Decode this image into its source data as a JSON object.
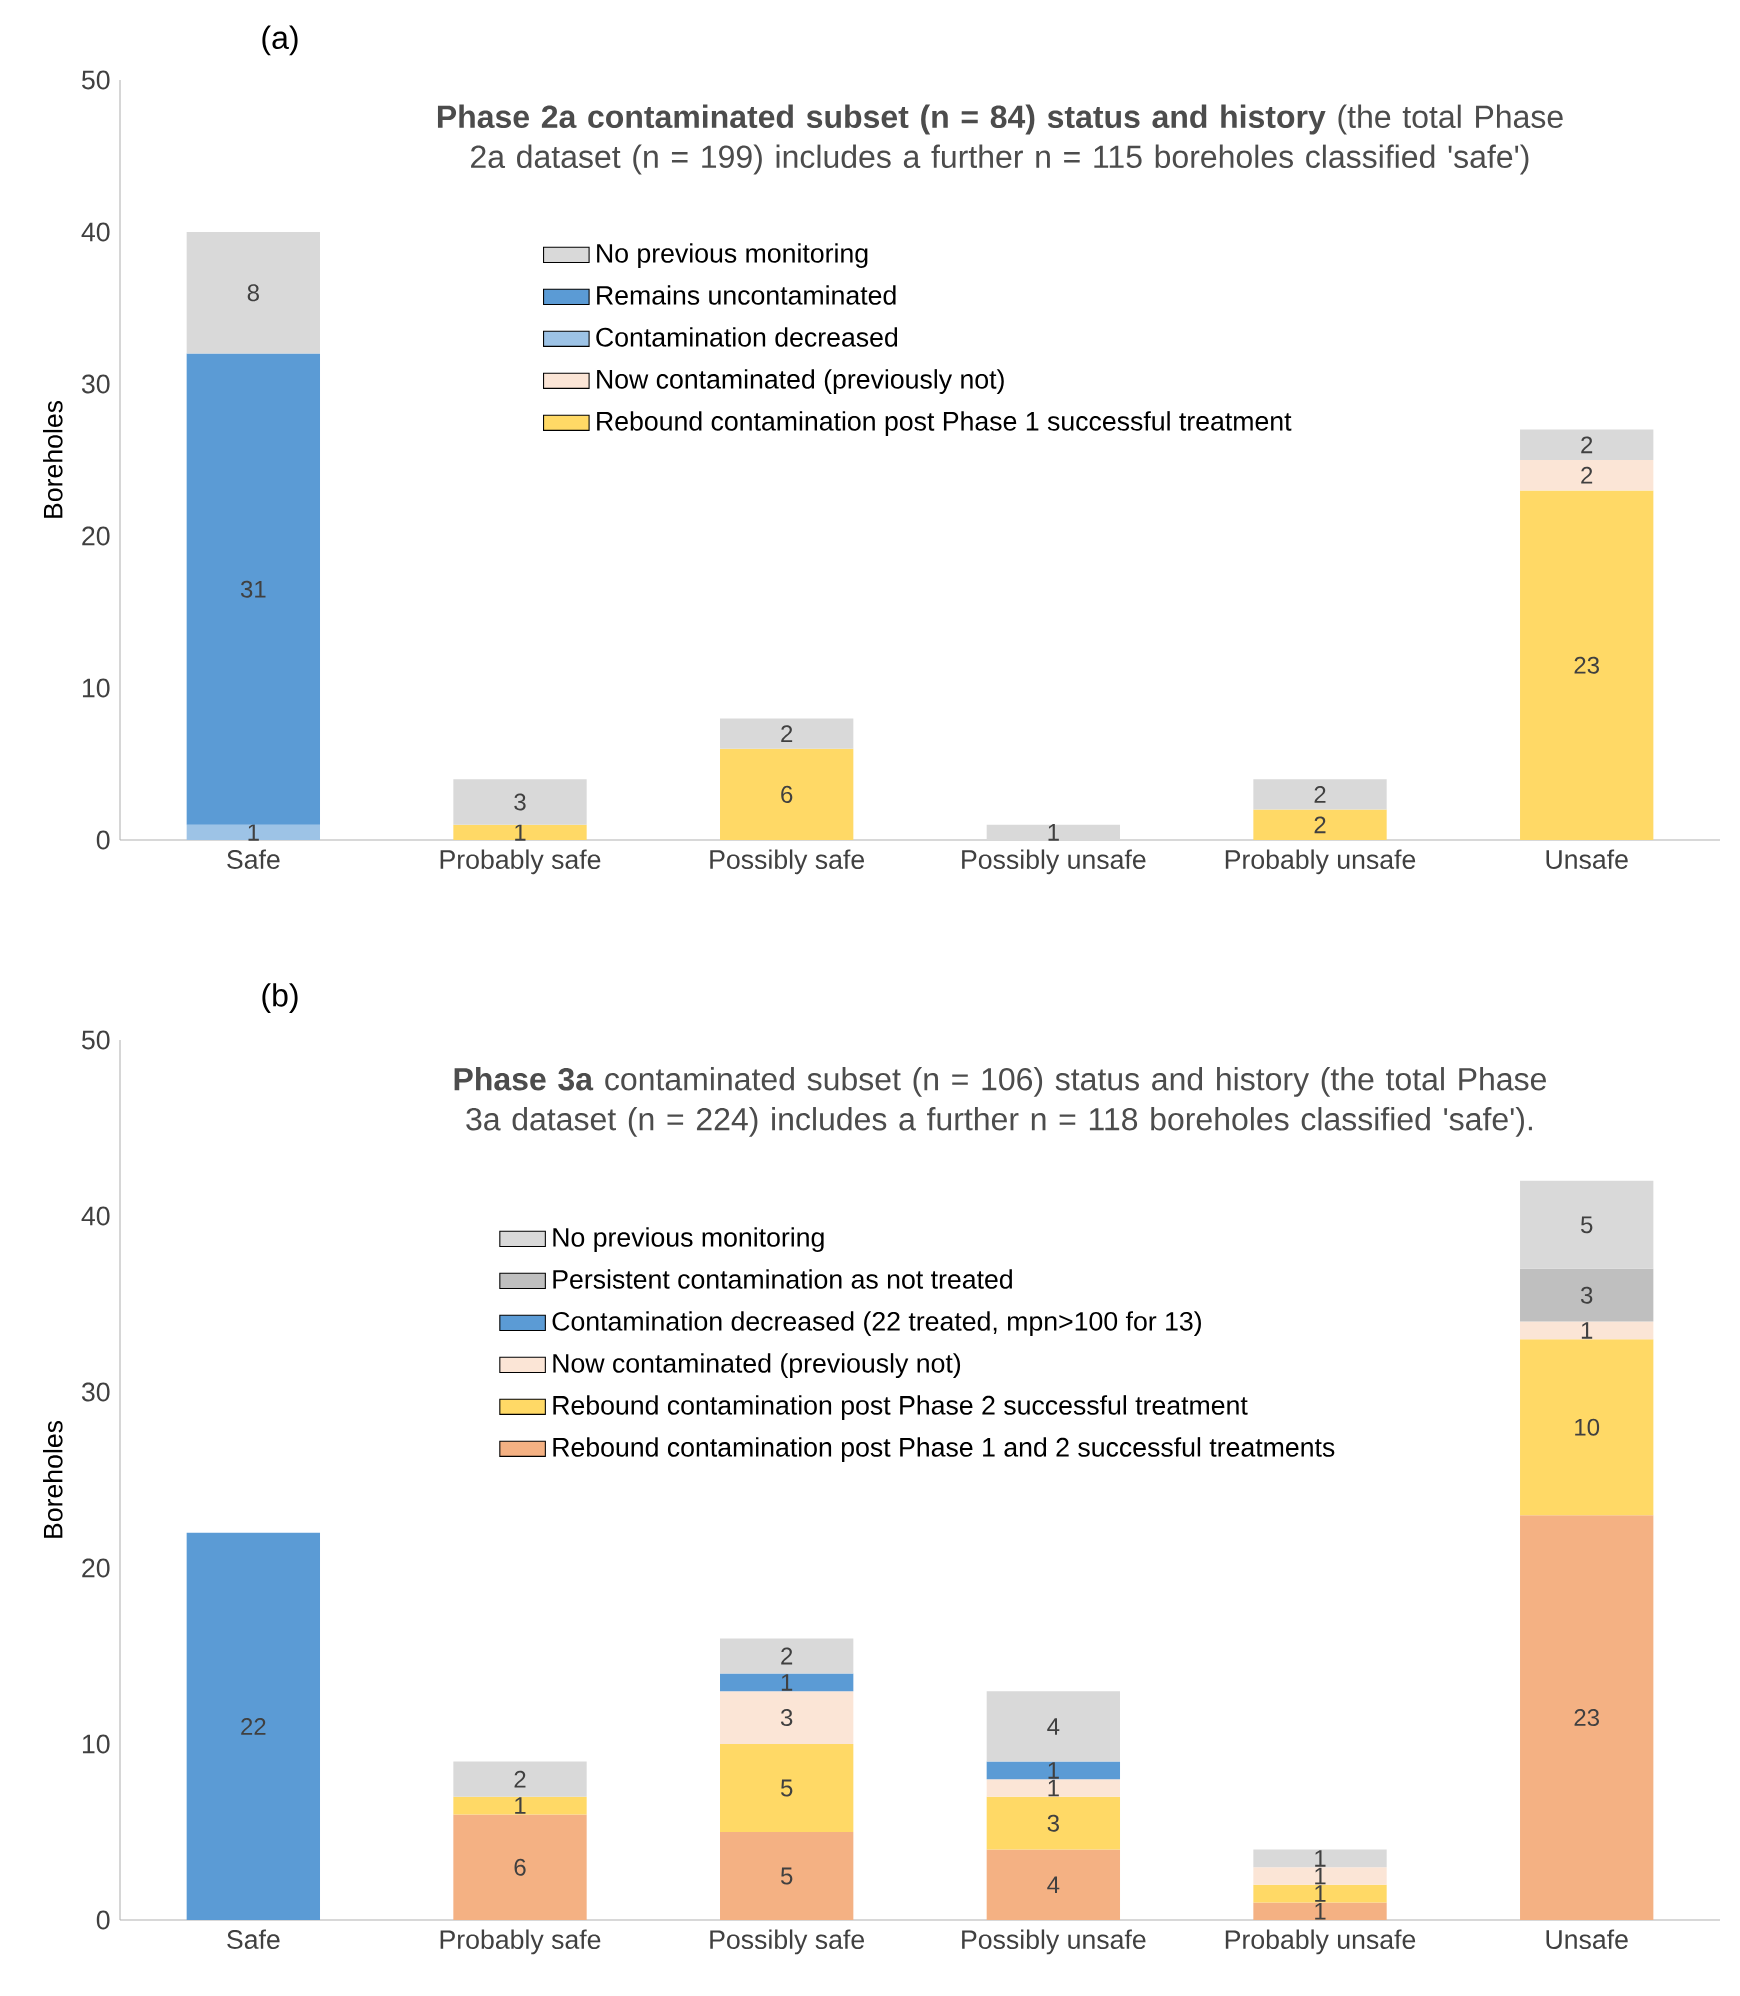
{
  "chart_data": [
    {
      "type": "bar",
      "stacked": true,
      "title": "**Phase 2a contaminated subset (n = 84) status and history** (the total Phase 2a dataset (n = 199) includes a further n = 115 boreholes classified 'safe')",
      "ylabel": "Boreholes",
      "annotations": [
        "(a)"
      ],
      "categories": [
        "Safe",
        "Probably safe",
        "Possibly safe",
        "Possibly unsafe",
        "Probably unsafe",
        "Unsafe"
      ],
      "ylim": [
        0,
        50
      ],
      "yticks": [
        0,
        10,
        20,
        30,
        40,
        50
      ],
      "legend": "top",
      "data_labels": true,
      "series": [
        {
          "name": "Rebound contamination post Phase 1 successful treatment",
          "color": "#ffd966",
          "values": [
            null,
            1,
            6,
            null,
            2,
            23
          ]
        },
        {
          "name": "Now contaminated (previously not)",
          "color": "#fbe5d6",
          "values": [
            null,
            null,
            null,
            null,
            null,
            2
          ]
        },
        {
          "name": "Contamination decreased",
          "color": "#9dc3e6",
          "values": [
            1,
            null,
            null,
            null,
            null,
            null
          ]
        },
        {
          "name": "Remains uncontaminated",
          "color": "#5b9bd5",
          "values": [
            31,
            null,
            null,
            null,
            null,
            null
          ]
        },
        {
          "name": "No previous monitoring",
          "color": "#d9d9d9",
          "values": [
            8,
            3,
            2,
            1,
            2,
            2
          ]
        }
      ]
    },
    {
      "type": "bar",
      "stacked": true,
      "title": "**Phase 3a** contaminated subset (n = 106) status and history (the total Phase 3a dataset (n = 224) includes a further n = 118 boreholes classified 'safe').",
      "ylabel": "Boreholes",
      "annotations": [
        "(b)"
      ],
      "categories": [
        "Safe",
        "Probably safe",
        "Possibly safe",
        "Possibly unsafe",
        "Probably unsafe",
        "Unsafe"
      ],
      "ylim": [
        0,
        50
      ],
      "yticks": [
        0,
        10,
        20,
        30,
        40,
        50
      ],
      "legend": "top",
      "data_labels": true,
      "series": [
        {
          "name": "Rebound contamination post Phase 1 and 2 successful treatments",
          "color": "#f4b183",
          "values": [
            null,
            6,
            5,
            4,
            1,
            23
          ]
        },
        {
          "name": "Rebound contamination post Phase 2 successful treatment",
          "color": "#ffd966",
          "values": [
            null,
            1,
            5,
            3,
            1,
            10
          ]
        },
        {
          "name": "Now contaminated (previously not)",
          "color": "#fbe5d6",
          "values": [
            null,
            null,
            3,
            1,
            1,
            1
          ]
        },
        {
          "name": "Contamination decreased (22 treated, mpn>100 for 13)",
          "color": "#5b9bd5",
          "values": [
            22,
            null,
            1,
            1,
            null,
            null
          ]
        },
        {
          "name": "Persistent contamination as not treated",
          "color": "#bfbfbf",
          "values": [
            null,
            null,
            null,
            null,
            null,
            3
          ]
        },
        {
          "name": "No previous monitoring",
          "color": "#d9d9d9",
          "values": [
            null,
            2,
            2,
            4,
            1,
            5
          ]
        }
      ]
    }
  ]
}
